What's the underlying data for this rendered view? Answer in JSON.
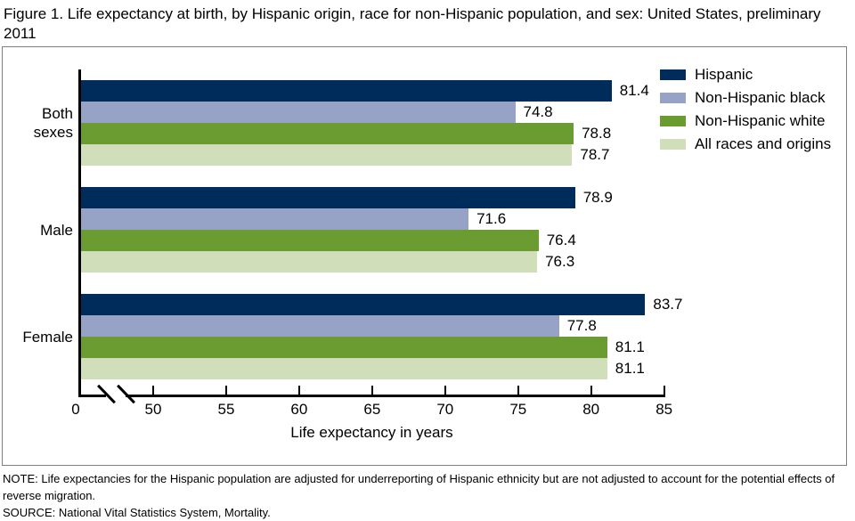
{
  "page": {
    "title": "Figure 1. Life expectancy at birth, by Hispanic origin, race for non-Hispanic population, and sex: United States, preliminary 2011",
    "note": "NOTE: Life expectancies for the Hispanic population are adjusted for underreporting of Hispanic ethnicity but are not adjusted to account for the potential effects of reverse migration.",
    "source": "SOURCE: National Vital Statistics System, Mortality."
  },
  "chart_data": {
    "type": "bar",
    "orientation": "horizontal",
    "title": "",
    "categories": [
      "Both sexes",
      "Male",
      "Female"
    ],
    "series": [
      {
        "name": "Hispanic",
        "color": "#002c5b",
        "values": [
          81.4,
          78.9,
          83.7
        ]
      },
      {
        "name": "Non-Hispanic black",
        "color": "#96a3c7",
        "values": [
          74.8,
          71.6,
          77.8
        ]
      },
      {
        "name": "Non-Hispanic white",
        "color": "#6b9c31",
        "values": [
          78.8,
          76.4,
          81.1
        ]
      },
      {
        "name": "All races and origins",
        "color": "#d0deba",
        "values": [
          78.7,
          76.3,
          81.1
        ]
      }
    ],
    "xlabel": "Life expectancy in years",
    "x_ticks": [
      0,
      50,
      55,
      60,
      65,
      70,
      75,
      80,
      85
    ],
    "xlim": [
      0,
      85
    ],
    "axis_break_between": [
      0,
      50
    ],
    "value_labels": true,
    "value_label_decimals": 1,
    "legend_position": "top-right",
    "grid": false,
    "axis_color": "#000000",
    "text_color": "#000000",
    "frame_border_color": "#7f7f7f"
  }
}
